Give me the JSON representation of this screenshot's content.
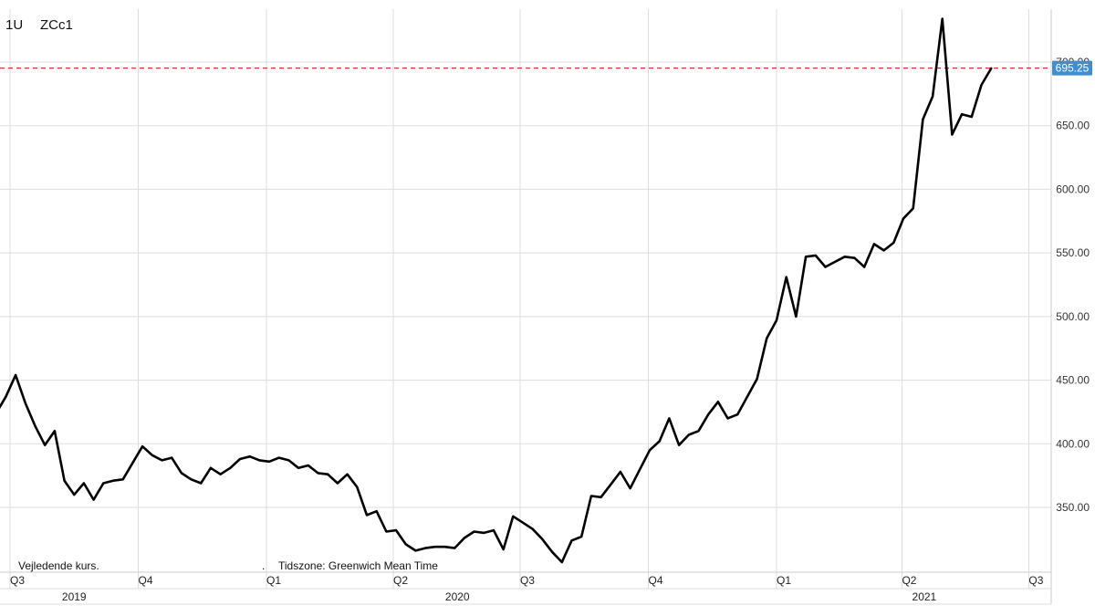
{
  "header": {
    "period": "1U",
    "symbol": "ZCc1"
  },
  "footer": {
    "note_left": "Vejledende kurs.",
    "note_sep": ".",
    "note_right": "Tidszone: Greenwich Mean Time"
  },
  "colors": {
    "line": "#000000",
    "grid": "#dddddd",
    "ref_line": "#cc3333",
    "badge": "#3e8ed0"
  },
  "chart_data": {
    "type": "line",
    "symbol": "ZCc1",
    "ylim": [
      300,
      700
    ],
    "yticks": [
      "350.00",
      "400.00",
      "450.00",
      "500.00",
      "550.00",
      "600.00",
      "650.00",
      "700.00"
    ],
    "grid": true,
    "last_value": 695.25,
    "last_value_label": "695.25",
    "quarters": [
      {
        "label": "Q3",
        "date": "2019-07-01"
      },
      {
        "label": "Q4",
        "date": "2019-10-01"
      },
      {
        "label": "Q1",
        "date": "2020-01-01"
      },
      {
        "label": "Q2",
        "date": "2020-04-01"
      },
      {
        "label": "Q3",
        "date": "2020-07-01"
      },
      {
        "label": "Q4",
        "date": "2020-10-01"
      },
      {
        "label": "Q1",
        "date": "2021-01-01"
      },
      {
        "label": "Q2",
        "date": "2021-04-01"
      },
      {
        "label": "Q3",
        "date": "2021-07-01"
      }
    ],
    "years": [
      {
        "label": "2019",
        "date": "2019-08-16"
      },
      {
        "label": "2020",
        "date": "2020-05-17"
      },
      {
        "label": "2021",
        "date": "2021-04-17"
      }
    ],
    "series": [
      {
        "x": [
          "2019-06-21",
          "2019-06-28",
          "2019-07-05",
          "2019-07-12",
          "2019-07-19",
          "2019-07-26",
          "2019-08-02",
          "2019-08-09",
          "2019-08-16",
          "2019-08-23",
          "2019-08-30",
          "2019-09-06",
          "2019-09-13",
          "2019-09-20",
          "2019-09-27",
          "2019-10-04",
          "2019-10-11",
          "2019-10-18",
          "2019-10-25",
          "2019-11-01",
          "2019-11-08",
          "2019-11-15",
          "2019-11-22",
          "2019-11-29",
          "2019-12-06",
          "2019-12-13",
          "2019-12-20",
          "2019-12-27",
          "2020-01-03",
          "2020-01-10",
          "2020-01-17",
          "2020-01-24",
          "2020-01-31",
          "2020-02-07",
          "2020-02-14",
          "2020-02-21",
          "2020-02-28",
          "2020-03-06",
          "2020-03-13",
          "2020-03-20",
          "2020-03-27",
          "2020-04-03",
          "2020-04-10",
          "2020-04-17",
          "2020-04-24",
          "2020-05-01",
          "2020-05-08",
          "2020-05-15",
          "2020-05-22",
          "2020-05-29",
          "2020-06-05",
          "2020-06-12",
          "2020-06-19",
          "2020-06-26",
          "2020-07-03",
          "2020-07-10",
          "2020-07-17",
          "2020-07-24",
          "2020-07-31",
          "2020-08-07",
          "2020-08-14",
          "2020-08-21",
          "2020-08-28",
          "2020-09-04",
          "2020-09-11",
          "2020-09-18",
          "2020-09-25",
          "2020-10-02",
          "2020-10-09",
          "2020-10-16",
          "2020-10-23",
          "2020-10-30",
          "2020-11-06",
          "2020-11-13",
          "2020-11-20",
          "2020-11-27",
          "2020-12-04",
          "2020-12-11",
          "2020-12-18",
          "2020-12-25",
          "2021-01-01",
          "2021-01-08",
          "2021-01-15",
          "2021-01-22",
          "2021-01-29",
          "2021-02-05",
          "2021-02-12",
          "2021-02-19",
          "2021-02-26",
          "2021-03-05",
          "2021-03-12",
          "2021-03-19",
          "2021-03-26",
          "2021-04-02",
          "2021-04-09",
          "2021-04-16",
          "2021-04-23",
          "2021-04-30",
          "2021-05-07",
          "2021-05-14",
          "2021-05-21",
          "2021-05-28",
          "2021-06-04"
        ],
        "values": [
          424,
          437,
          454,
          432,
          414,
          399,
          410,
          371,
          360,
          369,
          356,
          369,
          371,
          372,
          385,
          398,
          391,
          387,
          389,
          377,
          372,
          369,
          381,
          376,
          381,
          388,
          390,
          387,
          386,
          389,
          387,
          381,
          383,
          377,
          376,
          369,
          376,
          366,
          344,
          347,
          331,
          332,
          321,
          316,
          318,
          319,
          319,
          318,
          326,
          331,
          330,
          332,
          317,
          343,
          338,
          333,
          325,
          315,
          307,
          324,
          327,
          359,
          358,
          368,
          378,
          365,
          380,
          395,
          402,
          420,
          399,
          407,
          410,
          423,
          433,
          420,
          423,
          437,
          451,
          483,
          497,
          531,
          500,
          547,
          548,
          539,
          543,
          547,
          546,
          539,
          557,
          552,
          558,
          577,
          585,
          655,
          673,
          734,
          643,
          659,
          657,
          682,
          695
        ]
      }
    ]
  }
}
